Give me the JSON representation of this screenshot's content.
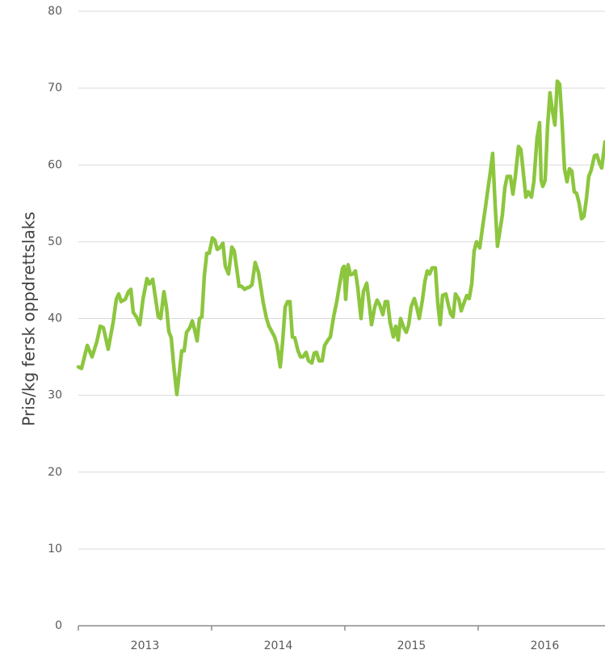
{
  "chart_data": {
    "type": "line",
    "y_label": "Pris/kg fersk oppdrettslaks",
    "categories": [
      "2013",
      "2014",
      "2015",
      "2016"
    ],
    "xticks": [
      2013,
      2014,
      2015,
      2016
    ],
    "xlim": [
      2013,
      2016.952
    ],
    "ylim": [
      0,
      80
    ],
    "yticks": [
      0,
      10,
      20,
      30,
      40,
      50,
      60,
      70,
      80
    ],
    "grid": true,
    "color": "#8cc63e",
    "x": [
      2013,
      2013.024,
      2013.067,
      2013.103,
      2013.139,
      2013.164,
      2013.188,
      2013.224,
      2013.261,
      2013.285,
      2013.303,
      2013.321,
      2013.352,
      2013.376,
      2013.394,
      2013.412,
      2013.436,
      2013.461,
      2013.485,
      2013.515,
      2013.533,
      2013.558,
      2013.576,
      2013.6,
      2013.618,
      2013.642,
      2013.661,
      2013.679,
      2013.697,
      2013.715,
      2013.739,
      2013.758,
      2013.776,
      2013.794,
      2013.812,
      2013.836,
      2013.855,
      2013.873,
      2013.891,
      2013.909,
      2013.927,
      2013.945,
      2013.964,
      2013.982,
      2014.006,
      2014.024,
      2014.042,
      2014.061,
      2014.085,
      2014.103,
      2014.127,
      2014.152,
      2014.17,
      2014.188,
      2014.206,
      2014.224,
      2014.248,
      2014.267,
      2014.285,
      2014.303,
      2014.327,
      2014.352,
      2014.37,
      2014.388,
      2014.412,
      2014.43,
      2014.455,
      2014.473,
      2014.491,
      2014.515,
      2014.533,
      2014.552,
      2014.57,
      2014.588,
      2014.606,
      2014.624,
      2014.648,
      2014.667,
      2014.685,
      2014.709,
      2014.727,
      2014.752,
      2014.77,
      2014.788,
      2014.806,
      2014.83,
      2014.848,
      2014.873,
      2014.891,
      2014.915,
      2014.939,
      2014.958,
      2014.982,
      2014.994,
      2015.006,
      2015.024,
      2015.042,
      2015.061,
      2015.079,
      2015.097,
      2015.121,
      2015.139,
      2015.164,
      2015.182,
      2015.2,
      2015.224,
      2015.242,
      2015.261,
      2015.285,
      2015.303,
      2015.321,
      2015.339,
      2015.364,
      2015.382,
      2015.4,
      2015.418,
      2015.442,
      2015.461,
      2015.479,
      2015.497,
      2015.521,
      2015.539,
      2015.558,
      2015.582,
      2015.6,
      2015.618,
      2015.636,
      2015.655,
      2015.679,
      2015.697,
      2015.715,
      2015.733,
      2015.758,
      2015.776,
      2015.794,
      2015.812,
      2015.83,
      2015.855,
      2015.873,
      2015.897,
      2015.915,
      2015.933,
      2015.952,
      2015.97,
      2015.988,
      2016.012,
      2016.03,
      2016.055,
      2016.073,
      2016.091,
      2016.109,
      2016.127,
      2016.145,
      2016.164,
      2016.182,
      2016.2,
      2016.218,
      2016.242,
      2016.261,
      2016.279,
      2016.303,
      2016.321,
      2016.339,
      2016.358,
      2016.376,
      2016.4,
      2016.418,
      2016.442,
      2016.461,
      2016.473,
      2016.485,
      2016.503,
      2016.521,
      2016.539,
      2016.558,
      2016.576,
      2016.594,
      2016.612,
      2016.63,
      2016.648,
      2016.667,
      2016.685,
      2016.703,
      2016.721,
      2016.739,
      2016.758,
      2016.776,
      2016.794,
      2016.812,
      2016.83,
      2016.848,
      2016.873,
      2016.891,
      2016.909,
      2016.927,
      2016.952
    ],
    "values": [
      33.7,
      33.5,
      36.5,
      35,
      37,
      39,
      38.8,
      36,
      39.5,
      42.5,
      43.2,
      42.2,
      42.5,
      43.5,
      43.8,
      40.8,
      40.2,
      39.2,
      42.5,
      45.2,
      44.5,
      45.1,
      43,
      40.2,
      40,
      43.5,
      41.5,
      38.3,
      37.5,
      34,
      30.1,
      33,
      35.8,
      35.8,
      38.2,
      38.8,
      39.7,
      38.5,
      37.1,
      40,
      40.2,
      45.5,
      48.5,
      48.5,
      50.5,
      50.2,
      49,
      49.2,
      49.8,
      46.8,
      45.8,
      49.3,
      48.8,
      46.5,
      44.2,
      44.2,
      43.8,
      44,
      44.1,
      44.4,
      47.3,
      46,
      44,
      42,
      40,
      39,
      38.2,
      37.6,
      36.5,
      33.7,
      37,
      41.5,
      42.2,
      42.2,
      37.6,
      37.5,
      35.8,
      35,
      35,
      35.6,
      34.5,
      34.2,
      35.5,
      35.6,
      34.5,
      34.5,
      36.5,
      37.2,
      37.6,
      40.2,
      42.2,
      44.2,
      46.5,
      46.8,
      42.5,
      47,
      45.7,
      45.8,
      46.2,
      44,
      40,
      43.5,
      44.6,
      42,
      39.2,
      41.5,
      42.4,
      41.8,
      40.5,
      42.2,
      42.2,
      39.5,
      37.6,
      39,
      37.2,
      40,
      38.8,
      38.2,
      39.2,
      41.5,
      42.6,
      41.5,
      40,
      42.4,
      44.8,
      46.2,
      45.8,
      46.6,
      46.6,
      42,
      39.2,
      43,
      43.2,
      41.8,
      40.6,
      40.2,
      43.2,
      42.5,
      41,
      42.2,
      43,
      42.6,
      44.5,
      48.8,
      50,
      49.2,
      51.5,
      54.5,
      56.8,
      59,
      61.5,
      55,
      49.4,
      51.5,
      53.5,
      57,
      58.5,
      58.5,
      56.2,
      58.5,
      62.4,
      62,
      59,
      55.8,
      56.5,
      55.8,
      57.8,
      63.5,
      65.5,
      58,
      57.2,
      58,
      65,
      69.4,
      67,
      65.2,
      70.9,
      70.5,
      65.5,
      59.5,
      57.8,
      59.5,
      59.2,
      56.5,
      56.3,
      55,
      53,
      53.3,
      55.5,
      58.5,
      59.3,
      61.2,
      61.3,
      60.3,
      59.6,
      63
    ]
  }
}
